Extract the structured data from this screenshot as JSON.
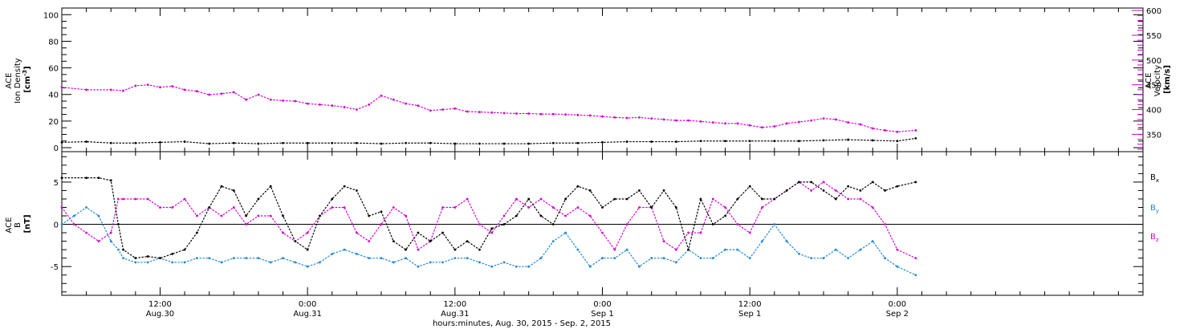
{
  "colors": {
    "density": "#000000",
    "velocity": "#d400d4",
    "bx": "#000000",
    "by": "#1e88d8",
    "bz": "#d400d4",
    "axis": "#000000"
  },
  "x_axis": {
    "title": "hours:minutes, Aug. 30, 2015 - Sep. 2, 2015",
    "range_hours": [
      4,
      92
    ],
    "ticks": [
      {
        "hour": 12,
        "time": "12:00",
        "date": "Aug.30"
      },
      {
        "hour": 24,
        "time": "0:00",
        "date": "Aug.31"
      },
      {
        "hour": 36,
        "time": "12:00",
        "date": "Aug.31"
      },
      {
        "hour": 48,
        "time": "0:00",
        "date": "Sep 1"
      },
      {
        "hour": 60,
        "time": "12:00",
        "date": "Sep 1"
      },
      {
        "hour": 72,
        "time": "0:00",
        "date": "Sep 2"
      }
    ]
  },
  "chart_data": [
    {
      "type": "scatter",
      "panel": "top",
      "left_axis": {
        "title_lines": [
          "ACE",
          "Ion Density"
        ],
        "unit_base": "[cm",
        "unit_sup": "-3",
        "unit_close": "]",
        "ylim": [
          -3,
          105
        ],
        "ticks": [
          0,
          20,
          40,
          60,
          80,
          100
        ]
      },
      "right_axis": {
        "title_lines": [
          "ACE",
          "Velocity",
          "[km/s]"
        ],
        "ylim": [
          315,
          605
        ],
        "ticks": [
          350,
          400,
          450,
          500,
          550,
          600
        ]
      },
      "series": [
        {
          "key": "density",
          "axis": "left",
          "x_hours": [
            4,
            6,
            8,
            10,
            12,
            14,
            16,
            18,
            20,
            22,
            24,
            26,
            28,
            30,
            32,
            34,
            36,
            38,
            40,
            42,
            44,
            46,
            48,
            50,
            52,
            54,
            56,
            58,
            60,
            62,
            64,
            66,
            68,
            70,
            72,
            73.5
          ],
          "y": [
            4,
            4.5,
            3.5,
            3.5,
            4,
            4.5,
            3,
            3.5,
            3,
            3.5,
            3.5,
            3.5,
            3.5,
            3,
            3.5,
            3.5,
            3,
            3,
            3,
            3,
            3.5,
            3.5,
            4,
            4.5,
            4.5,
            4.5,
            5,
            5,
            5,
            5,
            5,
            5.5,
            6,
            5.5,
            5,
            7
          ]
        },
        {
          "key": "velocity",
          "axis": "right",
          "x_hours": [
            4,
            6,
            8,
            9,
            10,
            11,
            12,
            13,
            14,
            15,
            16,
            17,
            18,
            19,
            20,
            21,
            22,
            23,
            24,
            25,
            26,
            27,
            28,
            29,
            30,
            31,
            32,
            33,
            34,
            35,
            36,
            37,
            38,
            39,
            40,
            41,
            42,
            43,
            44,
            45,
            46,
            47,
            48,
            49,
            50,
            51,
            52,
            53,
            54,
            55,
            56,
            57,
            58,
            59,
            60,
            61,
            62,
            63,
            64,
            65,
            66,
            67,
            68,
            69,
            70,
            71,
            72,
            73.5
          ],
          "y": [
            445,
            440,
            440,
            438,
            448,
            450,
            445,
            447,
            440,
            437,
            430,
            432,
            435,
            420,
            430,
            420,
            418,
            417,
            412,
            410,
            408,
            405,
            400,
            410,
            428,
            420,
            412,
            408,
            398,
            400,
            402,
            396,
            395,
            394,
            393,
            392,
            392,
            391,
            391,
            390,
            389,
            388,
            386,
            384,
            383,
            384,
            382,
            380,
            378,
            378,
            376,
            374,
            372,
            372,
            368,
            364,
            366,
            372,
            375,
            378,
            382,
            380,
            374,
            370,
            362,
            358,
            355,
            358
          ]
        }
      ]
    },
    {
      "type": "scatter",
      "panel": "bottom",
      "left_axis": {
        "title_lines": [
          "ACE",
          "B",
          "[nT]"
        ],
        "ylim": [
          -8.4,
          8.6
        ],
        "ticks": [
          -5,
          0,
          5
        ]
      },
      "legend": [
        "B",
        "B",
        "B"
      ],
      "legend_subscripts": [
        "x",
        "y",
        "z"
      ],
      "series": [
        {
          "key": "bx",
          "x_hours": [
            4,
            6,
            7,
            8,
            8.6,
            9,
            10,
            11,
            12,
            13,
            14,
            15,
            16,
            17,
            18,
            19,
            20,
            21,
            22,
            23,
            24,
            25,
            26,
            27,
            28,
            29,
            30,
            31,
            32,
            33,
            34,
            35,
            36,
            37,
            38,
            39,
            40,
            41,
            42,
            43,
            44,
            45,
            46,
            47,
            48,
            49,
            50,
            51,
            52,
            53,
            54,
            55,
            56,
            57,
            58,
            59,
            60,
            61,
            62,
            63,
            64,
            65,
            66,
            67,
            68,
            69,
            70,
            71,
            72,
            73.5
          ],
          "y": [
            5.5,
            5.5,
            5.5,
            5.2,
            0,
            -3,
            -4,
            -3.8,
            -4,
            -3.5,
            -3,
            -1,
            2,
            4.5,
            4,
            1,
            3,
            4.5,
            1,
            -2,
            -3,
            1,
            3,
            4.5,
            4,
            1,
            1.5,
            -2,
            -3,
            -1,
            -2,
            -1,
            -3,
            -2,
            -3,
            -0.5,
            0,
            1,
            3,
            1,
            0,
            3,
            4.5,
            4,
            2,
            3,
            3,
            4,
            2,
            4,
            2,
            -3,
            3,
            0,
            1,
            3,
            4.5,
            3,
            3,
            4,
            5,
            5,
            4,
            3,
            4.5,
            4,
            5,
            4,
            4.5,
            5
          ]
        },
        {
          "key": "by",
          "x_hours": [
            4,
            5,
            6,
            7,
            8,
            8.6,
            9,
            10,
            11,
            12,
            13,
            14,
            15,
            16,
            17,
            18,
            19,
            20,
            21,
            22,
            23,
            24,
            25,
            26,
            27,
            28,
            29,
            30,
            31,
            32,
            33,
            34,
            35,
            36,
            37,
            38,
            39,
            40,
            41,
            42,
            43,
            44,
            45,
            46,
            47,
            48,
            49,
            50,
            51,
            52,
            53,
            54,
            55,
            56,
            57,
            58,
            59,
            60,
            61,
            62,
            63,
            64,
            65,
            66,
            67,
            68,
            69,
            70,
            71,
            72,
            73.5
          ],
          "y": [
            0,
            1,
            2,
            1,
            -2,
            -3,
            -4,
            -4.5,
            -4.5,
            -4,
            -4.5,
            -4.5,
            -4,
            -4,
            -4.5,
            -4,
            -4,
            -4,
            -4.5,
            -4,
            -4.5,
            -5,
            -4.5,
            -3.5,
            -3,
            -3.5,
            -4,
            -4,
            -4.5,
            -4,
            -5,
            -4.5,
            -4.5,
            -4,
            -4,
            -4.5,
            -5,
            -4.5,
            -5,
            -5,
            -4,
            -2,
            -1,
            -3,
            -5,
            -4,
            -4,
            -3,
            -5,
            -4,
            -4,
            -4.5,
            -3,
            -4,
            -4,
            -3,
            -3,
            -4,
            -2,
            0,
            -2,
            -3.5,
            -4,
            -4,
            -3,
            -4,
            -3,
            -2,
            -4,
            -5,
            -6
          ]
        },
        {
          "key": "bz",
          "x_hours": [
            4,
            5,
            6,
            7,
            8,
            8.6,
            9,
            10,
            11,
            12,
            13,
            14,
            15,
            16,
            17,
            18,
            19,
            20,
            21,
            22,
            23,
            24,
            25,
            26,
            27,
            28,
            29,
            30,
            31,
            32,
            33,
            34,
            35,
            36,
            37,
            38,
            39,
            40,
            41,
            42,
            43,
            44,
            45,
            46,
            47,
            48,
            49,
            50,
            51,
            52,
            53,
            54,
            55,
            56,
            57,
            58,
            59,
            60,
            61,
            62,
            63,
            64,
            65,
            66,
            67,
            68,
            69,
            70,
            71,
            72,
            73.5
          ],
          "y": [
            2,
            0,
            -1,
            -2,
            -1,
            3,
            3,
            3,
            3,
            2,
            2,
            3,
            1,
            2,
            1,
            2,
            0,
            1,
            1,
            -1,
            -2,
            -1,
            1,
            2,
            2,
            -1,
            -2,
            0,
            2,
            1,
            -3,
            -2,
            2,
            2,
            3,
            0,
            -1,
            1,
            3,
            2,
            3,
            2,
            1,
            2,
            1,
            -1,
            -3,
            0,
            2,
            2,
            -2,
            -3,
            -1,
            -1,
            3,
            2,
            0,
            -1,
            2,
            3,
            4,
            5,
            4,
            5,
            4,
            3,
            3,
            2,
            0,
            -3,
            -4
          ]
        }
      ]
    }
  ]
}
